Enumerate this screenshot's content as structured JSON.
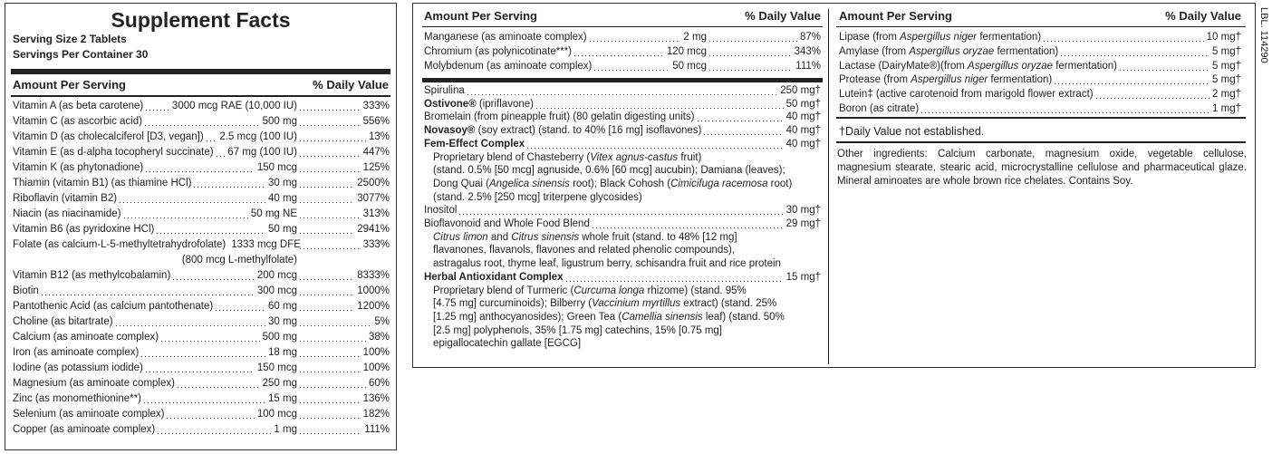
{
  "panel1": {
    "title": "Supplement Facts",
    "serving_size": "Serving Size 2 Tablets",
    "servings": "Servings Per Container 30",
    "header": [
      "Amount Per Serving",
      "% Daily Value"
    ],
    "rows": [
      {
        "name": "Vitamin A (as beta carotene)",
        "amount": "3000 mcg RAE (10,000 IU)",
        "dv": "333%"
      },
      {
        "name": "Vitamin C (as ascorbic acid)",
        "amount": "500 mg",
        "dv": "556%"
      },
      {
        "name": "Vitamin D (as cholecalciferol [D3, vegan])",
        "amount": "2.5 mcg (100 IU)",
        "dv": "13%"
      },
      {
        "name": "Vitamin E (as d-alpha tocopheryl succinate)",
        "amount": "67 mg (100 IU)",
        "dv": "447%"
      },
      {
        "name": "Vitamin K (as phytonadione)",
        "amount": "150 mcg",
        "dv": "125%"
      },
      {
        "name": "Thiamin (vitamin B1) (as thiamine HCl)",
        "amount": "30 mg",
        "dv": "2500%"
      },
      {
        "name": "Riboflavin (vitamin B2)",
        "amount": "40 mg",
        "dv": "3077%"
      },
      {
        "name": "Niacin (as niacinamide)",
        "amount": "50 mg NE",
        "dv": "313%"
      },
      {
        "name": "Vitamin B6 (as pyridoxine HCl)",
        "amount": "50 mg",
        "dv": "2941%"
      },
      {
        "name": "Folate (as calcium-L-5-methyltetrahydrofolate)",
        "amount": "1333 mcg DFE",
        "dv": "333%",
        "sub": "(800 mcg L-methylfolate)"
      },
      {
        "name": "Vitamin B12 (as methylcobalamin)",
        "amount": "200 mcg",
        "dv": "8333%"
      },
      {
        "name": "Biotin",
        "amount": "300 mcg",
        "dv": "1000%"
      },
      {
        "name": "Pantothenic Acid (as calcium pantothenate)",
        "amount": "60 mg",
        "dv": "1200%"
      },
      {
        "name": "Choline (as bitartrate)",
        "amount": "30 mg",
        "dv": "5%"
      },
      {
        "name": "Calcium (as aminoate complex)",
        "amount": "500 mg",
        "dv": "38%"
      },
      {
        "name": "Iron (as aminoate complex)",
        "amount": "18 mg",
        "dv": "100%"
      },
      {
        "name": "Iodine (as potassium iodide)",
        "amount": "150 mcg",
        "dv": "100%"
      },
      {
        "name": "Magnesium (as aminoate complex)",
        "amount": "250 mg",
        "dv": "60%"
      },
      {
        "name": "Zinc (as monomethionine**)",
        "amount": "15 mg",
        "dv": "136%"
      },
      {
        "name": "Selenium (as aminoate complex)",
        "amount": "100 mcg",
        "dv": "182%"
      },
      {
        "name": "Copper (as aminoate complex)",
        "amount": "1 mg",
        "dv": "111%"
      }
    ]
  },
  "panel2": {
    "header": [
      "Amount Per Serving",
      "% Daily Value"
    ],
    "minerals": [
      {
        "name": "Manganese (as aminoate complex)",
        "amount": "2 mg",
        "dv": "87%"
      },
      {
        "name": "Chromium (as polynicotinate***)",
        "amount": "120 mcg",
        "dv": "343%"
      },
      {
        "name": "Molybdenum (as aminoate complex)",
        "amount": "50 mcg",
        "dv": "111%"
      }
    ],
    "items": [
      {
        "name": [
          "Spirulina"
        ],
        "amount": "250 mg†"
      },
      {
        "name": [
          {
            "b": "Ostivone®"
          },
          " (ipriflavone)"
        ],
        "amount": "50 mg†"
      },
      {
        "name": [
          "Bromelain (from pineapple fruit) (80 gelatin digesting units)"
        ],
        "amount": "40 mg†"
      },
      {
        "name": [
          {
            "b": "Novasoy®"
          },
          " (soy extract) (stand. to 40% [16 mg] isoflavones)"
        ],
        "amount": "40 mg†"
      },
      {
        "name": [
          {
            "b": "Fem-Effect Complex"
          }
        ],
        "amount": "40 mg†",
        "lines": [
          [
            "Proprietary blend of Chasteberry (",
            {
              "i": "Vitex agnus-castus"
            },
            " fruit)"
          ],
          [
            "(stand. 0.5% [50 mcg] agnuside, 0.6% [60 mcg] aucubin); Damiana (leaves);"
          ],
          [
            "Dong Quai (",
            {
              "i": "Angelica sinensis"
            },
            " root); Black Cohosh (",
            {
              "i": "Cimicifuga racemosa"
            },
            " root)"
          ],
          [
            "(stand. 2.5% [250 mcg] triterpene glycosides)"
          ]
        ]
      },
      {
        "name": [
          "Inositol"
        ],
        "amount": "30 mg†"
      },
      {
        "name": [
          "Bioflavonoid and Whole Food Blend"
        ],
        "amount": "29 mg†",
        "lines": [
          [
            {
              "i": "Citrus limon"
            },
            " and ",
            {
              "i": "Citrus sinensis"
            },
            " whole fruit (stand. to 48% [12 mg]"
          ],
          [
            "flavanones, flavanols, flavones and related phenolic compounds),"
          ],
          [
            "astragalus root, thyme leaf, ligustrum berry, schisandra fruit and rice protein"
          ]
        ]
      },
      {
        "name": [
          {
            "b": "Herbal Antioxidant Complex"
          }
        ],
        "amount": "15 mg†",
        "lines": [
          [
            "Proprietary blend of Turmeric (",
            {
              "i": "Curcuma longa"
            },
            " rhizome) (stand. 95%"
          ],
          [
            "[4.75 mg] curcuminoids); Bilberry (",
            {
              "i": "Vaccinium myrtillus"
            },
            " extract) (stand. 25%"
          ],
          [
            "[1.25 mg] anthocyanosides); Green Tea (",
            {
              "i": "Camellia sinensis"
            },
            " leaf) (stand. 50%"
          ],
          [
            "[2.5 mg] polyphenols, 35% [1.75 mg] catechins, 15% [0.75 mg]"
          ],
          [
            "epigallocatechin gallate [EGCG]"
          ]
        ]
      }
    ]
  },
  "panel3": {
    "header": [
      "Amount Per Serving",
      "% Daily Value"
    ],
    "rows": [
      {
        "name": [
          "Lipase (from ",
          {
            "i": "Aspergillus niger"
          },
          " fermentation)"
        ],
        "amount": "10 mg†"
      },
      {
        "name": [
          "Amylase (from ",
          {
            "i": "Aspergillus oryzae"
          },
          " fermentation)"
        ],
        "amount": "5 mg†"
      },
      {
        "name": [
          "Lactase (DairyMate®)(from ",
          {
            "i": "Aspergillus oryzae"
          },
          " fermentation)"
        ],
        "amount": "5 mg†"
      },
      {
        "name": [
          "Protease (from ",
          {
            "i": "Aspergillus niger"
          },
          " fermentation)"
        ],
        "amount": "5 mg†"
      },
      {
        "name": [
          "Lutein‡ (active carotenoid from marigold flower extract)"
        ],
        "amount": "2 mg†"
      },
      {
        "name": [
          "Boron (as citrate)"
        ],
        "amount": "1 mg†"
      }
    ],
    "footnote": "†Daily Value not established.",
    "other_ingredients": "Other ingredients: Calcium carbonate, magnesium oxide, vegetable cellulose, magnesium stearate, stearic acid, microcrystalline cellulose and pharmaceutical glaze. Mineral aminoates are whole brown rice chelates. Contains Soy."
  },
  "label_code": "LBL. 114290"
}
